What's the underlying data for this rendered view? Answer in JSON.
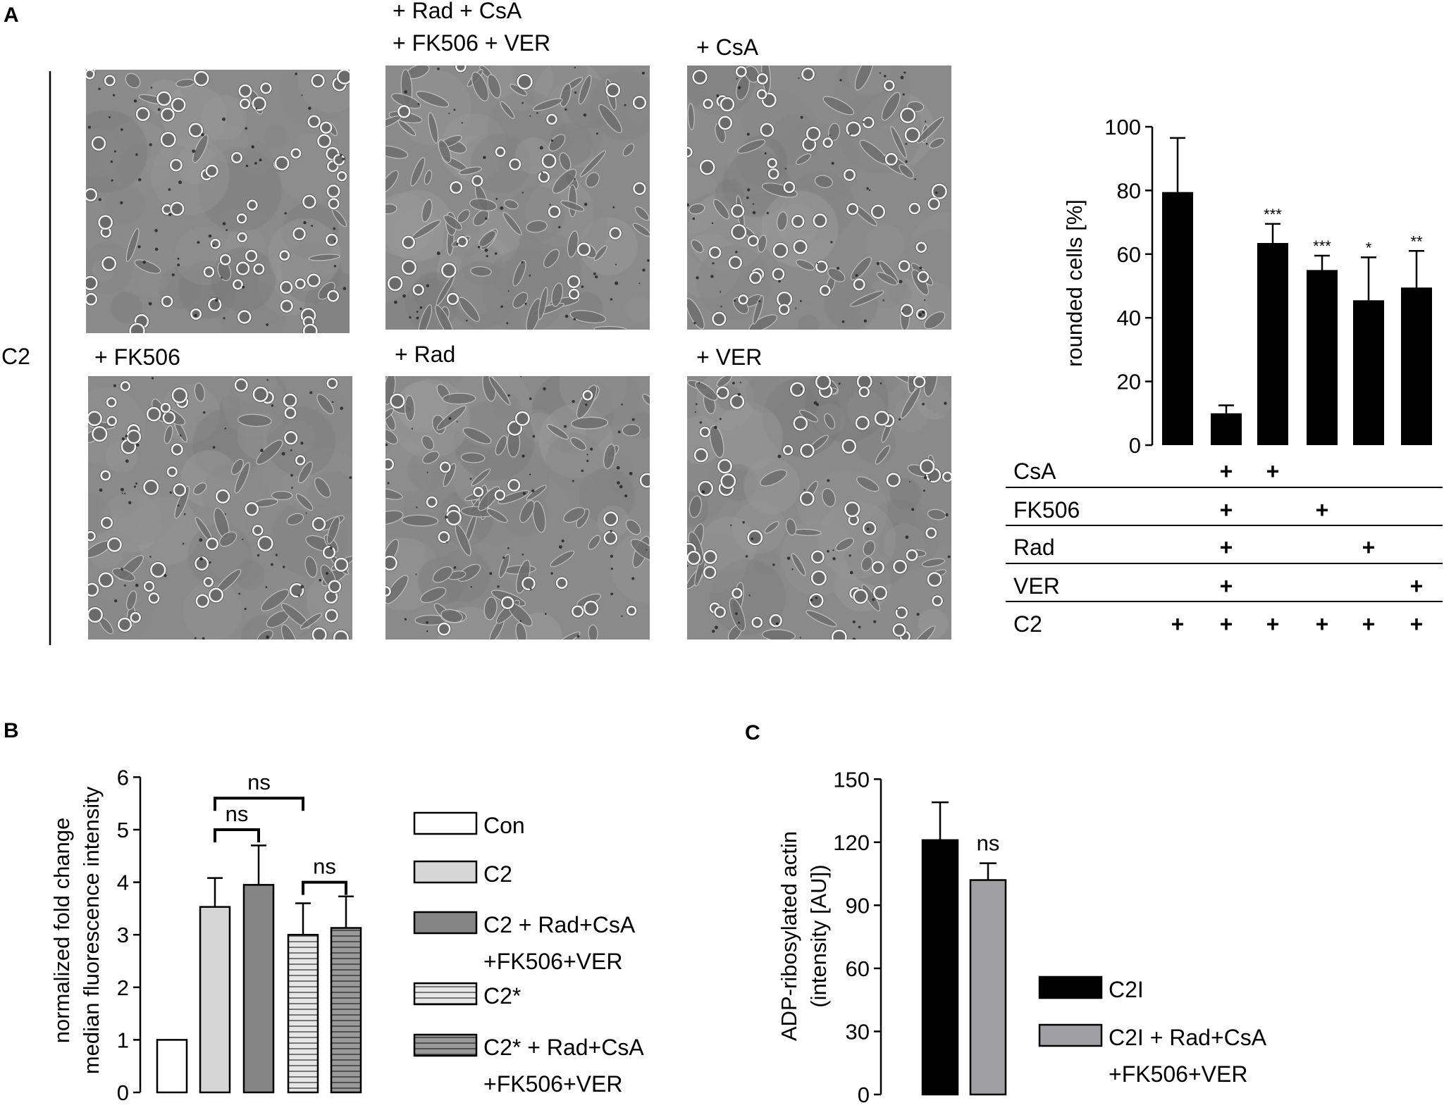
{
  "panels": {
    "a": {
      "letter": "A",
      "row_label": "C2",
      "micrographs": [
        {
          "label": "",
          "seed": 11,
          "style": "rounded"
        },
        {
          "label_lines": [
            "+ Rad + CsA",
            "+ FK506 + VER"
          ],
          "seed": 23,
          "style": "spread"
        },
        {
          "label": "+ CsA",
          "seed": 37,
          "style": "mixed"
        },
        {
          "label": "+ FK506",
          "seed": 41,
          "style": "mixed"
        },
        {
          "label": "+ Rad",
          "seed": 53,
          "style": "spread"
        },
        {
          "label": "+ VER",
          "seed": 67,
          "style": "mixed"
        }
      ]
    },
    "b": {
      "letter": "B"
    },
    "c": {
      "letter": "C"
    }
  },
  "chart_data": [
    {
      "id": "A",
      "type": "bar",
      "ylabel": "rounded cells [%]",
      "ylim": [
        0,
        100
      ],
      "yticks": [
        0,
        20,
        40,
        60,
        80,
        100
      ],
      "values": [
        79.5,
        10,
        63.5,
        55,
        45.5,
        49.5
      ],
      "errors": [
        17,
        2.5,
        6,
        4.5,
        13.5,
        11.5
      ],
      "significance": [
        "",
        "",
        "***",
        "***",
        "*",
        "**"
      ],
      "bar_color": "#000000",
      "treatment_table": {
        "rows": [
          {
            "label": "CsA",
            "marks": [
              "",
              "+",
              "+",
              "",
              "",
              ""
            ]
          },
          {
            "label": "FK506",
            "marks": [
              "",
              "+",
              "",
              "+",
              "",
              ""
            ]
          },
          {
            "label": "Rad",
            "marks": [
              "",
              "+",
              "",
              "",
              "+",
              ""
            ]
          },
          {
            "label": "VER",
            "marks": [
              "",
              "+",
              "",
              "",
              "",
              "+"
            ]
          },
          {
            "label": "C2",
            "marks": [
              "+",
              "+",
              "+",
              "+",
              "+",
              "+"
            ]
          }
        ]
      }
    },
    {
      "id": "B",
      "type": "bar",
      "ylabel_lines": [
        "normalized fold change",
        "median fluorescence intensity"
      ],
      "ylim": [
        0,
        6
      ],
      "yticks": [
        0,
        1,
        2,
        3,
        4,
        5,
        6
      ],
      "categories": [
        "Con",
        "C2",
        "C2 + Rad+CsA +FK506+VER",
        "C2*",
        "C2* + Rad+CsA +FK506+VER"
      ],
      "values": [
        1.0,
        3.53,
        3.95,
        3.0,
        3.13
      ],
      "errors": [
        0,
        0.55,
        0.75,
        0.6,
        0.6
      ],
      "colors": [
        "#ffffff",
        "#d6d6d6",
        "#858585",
        "#e6e6e6",
        "#959595"
      ],
      "hatched": [
        false,
        false,
        false,
        true,
        true
      ],
      "comparisons": [
        {
          "from": 1,
          "to": 3,
          "text": "ns"
        },
        {
          "from": 1,
          "to": 2,
          "text": "ns"
        },
        {
          "from": 3,
          "to": 4,
          "text": "ns"
        }
      ],
      "legend": [
        {
          "lines": [
            "Con"
          ]
        },
        {
          "lines": [
            "C2"
          ]
        },
        {
          "lines": [
            "C2 + Rad+CsA",
            "+FK506+VER"
          ]
        },
        {
          "lines": [
            "C2*"
          ]
        },
        {
          "lines": [
            "C2* + Rad+CsA",
            "+FK506+VER"
          ]
        }
      ]
    },
    {
      "id": "C",
      "type": "bar",
      "ylabel_lines": [
        "ADP-ribosylated actin",
        "(intensity [AU])"
      ],
      "ylim": [
        0,
        150
      ],
      "yticks": [
        0,
        30,
        60,
        90,
        120,
        150
      ],
      "categories": [
        "C2I",
        "C2I + Rad+CsA +FK506+VER"
      ],
      "values": [
        121,
        102
      ],
      "errors": [
        18,
        8
      ],
      "colors": [
        "#000000",
        "#a0a0a4"
      ],
      "significance": [
        "",
        "ns"
      ],
      "legend": [
        {
          "lines": [
            "C2I"
          ]
        },
        {
          "lines": [
            "C2I + Rad+CsA",
            "+FK506+VER"
          ]
        }
      ]
    }
  ]
}
